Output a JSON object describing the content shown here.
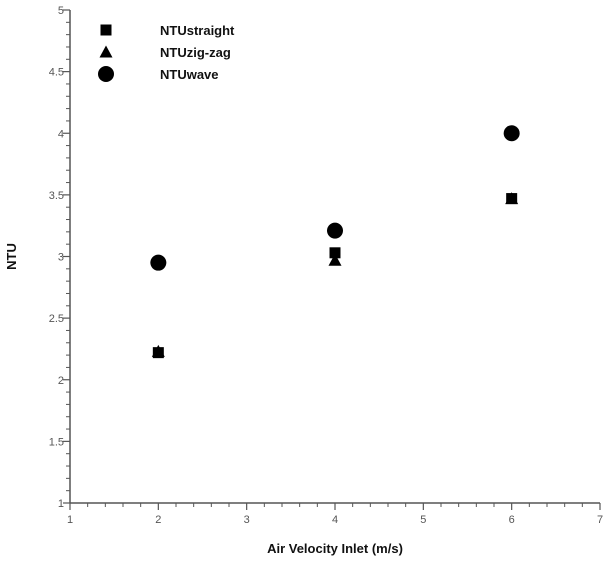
{
  "chart_data": {
    "type": "scatter",
    "title": "",
    "xlabel": "Air Velocity Inlet (m/s)",
    "ylabel": "NTU",
    "xlim": [
      1,
      7
    ],
    "ylim": [
      1,
      5
    ],
    "x_ticks": [
      "1",
      "2",
      "3",
      "4",
      "5",
      "6",
      "7"
    ],
    "y_ticks": [
      "1",
      "1.5",
      "2",
      "2.5",
      "3",
      "3.5",
      "4",
      "4.5",
      "5"
    ],
    "grid": false,
    "legend_position": "top-left",
    "series": [
      {
        "name": "NTUstraight",
        "marker": "square",
        "points": [
          {
            "x": 2,
            "y": 2.22
          },
          {
            "x": 4,
            "y": 3.03
          },
          {
            "x": 6,
            "y": 3.47
          }
        ]
      },
      {
        "name": "NTUzig-zag",
        "marker": "triangle",
        "points": [
          {
            "x": 2,
            "y": 2.23
          },
          {
            "x": 4,
            "y": 2.97
          },
          {
            "x": 6,
            "y": 3.47
          }
        ]
      },
      {
        "name": "NTUwave",
        "marker": "circle",
        "points": [
          {
            "x": 2,
            "y": 2.95
          },
          {
            "x": 4,
            "y": 3.21
          },
          {
            "x": 6,
            "y": 4.0
          }
        ]
      }
    ],
    "colors": {
      "marker": "#000000",
      "axis": "#555555"
    }
  }
}
